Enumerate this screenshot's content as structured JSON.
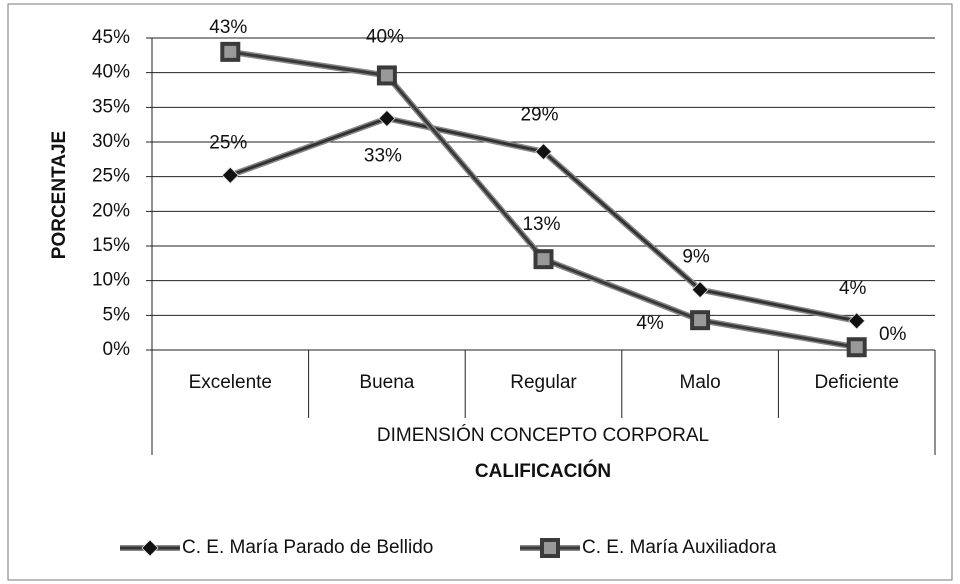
{
  "chart_data": {
    "type": "line",
    "categories": [
      "Excelente",
      "Buena",
      "Regular",
      "Malo",
      "Deficiente"
    ],
    "x_group_label": "DIMENSIÓN CONCEPTO CORPORAL",
    "x_label": "CALIFICACIÓN",
    "y_label": "PORCENTAJE",
    "series": [
      {
        "name": "C. E.  María Parado de Bellido",
        "color": "#333333",
        "marker": "diamond",
        "values": [
          25.2,
          33.4,
          28.6,
          8.7,
          4.2
        ],
        "value_labels": [
          "25%",
          "33%",
          "29%",
          "9%",
          "4%"
        ]
      },
      {
        "name": "C. E.  María Auxiliadora",
        "color": "#3a3a3a",
        "marker": "square",
        "values": [
          43.0,
          39.6,
          13.1,
          4.3,
          0.4
        ],
        "value_labels": [
          "43%",
          "40%",
          "13%",
          "4%",
          "0%"
        ]
      }
    ],
    "ylim": [
      0,
      45
    ],
    "yticks": [
      {
        "value": 0,
        "label": "0%"
      },
      {
        "value": 5,
        "label": "5%"
      },
      {
        "value": 10,
        "label": "10%"
      },
      {
        "value": 15,
        "label": "15%"
      },
      {
        "value": 20,
        "label": "20%"
      },
      {
        "value": 25,
        "label": "25%"
      },
      {
        "value": 30,
        "label": "30%"
      },
      {
        "value": 35,
        "label": "35%"
      },
      {
        "value": 40,
        "label": "40%"
      },
      {
        "value": 45,
        "label": "45%"
      }
    ],
    "grid": true,
    "legend": "bottom"
  }
}
